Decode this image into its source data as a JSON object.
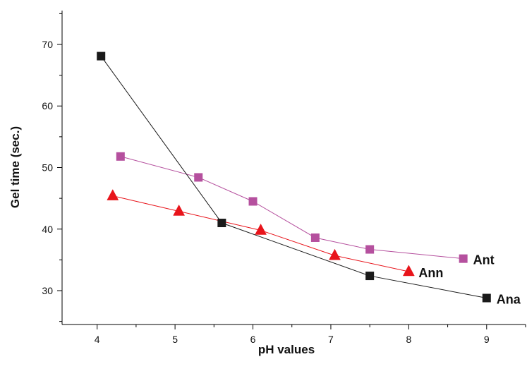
{
  "chart_data": {
    "type": "line",
    "title": "",
    "xlabel": "pH values",
    "ylabel": "Gel time (sec.)",
    "xlim": [
      3.55,
      9.5
    ],
    "ylim": [
      24.5,
      75.5
    ],
    "xticks": [
      4,
      5,
      6,
      7,
      8,
      9
    ],
    "yticks": [
      30,
      40,
      50,
      60,
      70
    ],
    "grid": false,
    "legend": "inline labels at series ends",
    "series": [
      {
        "name": "Ant",
        "marker": "square",
        "color": "#B5509E",
        "points": [
          {
            "x": 4.3,
            "y": 51.8
          },
          {
            "x": 5.3,
            "y": 48.4
          },
          {
            "x": 6.0,
            "y": 44.5
          },
          {
            "x": 6.8,
            "y": 38.6
          },
          {
            "x": 7.5,
            "y": 36.7
          },
          {
            "x": 8.7,
            "y": 35.2
          }
        ]
      },
      {
        "name": "Ann",
        "marker": "triangle",
        "color": "#E8141B",
        "points": [
          {
            "x": 4.2,
            "y": 45.4
          },
          {
            "x": 5.05,
            "y": 42.9
          },
          {
            "x": 6.1,
            "y": 39.8
          },
          {
            "x": 7.05,
            "y": 35.7
          },
          {
            "x": 8.0,
            "y": 33.1
          }
        ]
      },
      {
        "name": "Ana",
        "marker": "square",
        "color": "#1A1A1A",
        "points": [
          {
            "x": 4.05,
            "y": 68.1
          },
          {
            "x": 5.6,
            "y": 41.0
          },
          {
            "x": 7.5,
            "y": 32.4
          },
          {
            "x": 9.0,
            "y": 28.8
          }
        ]
      }
    ]
  }
}
